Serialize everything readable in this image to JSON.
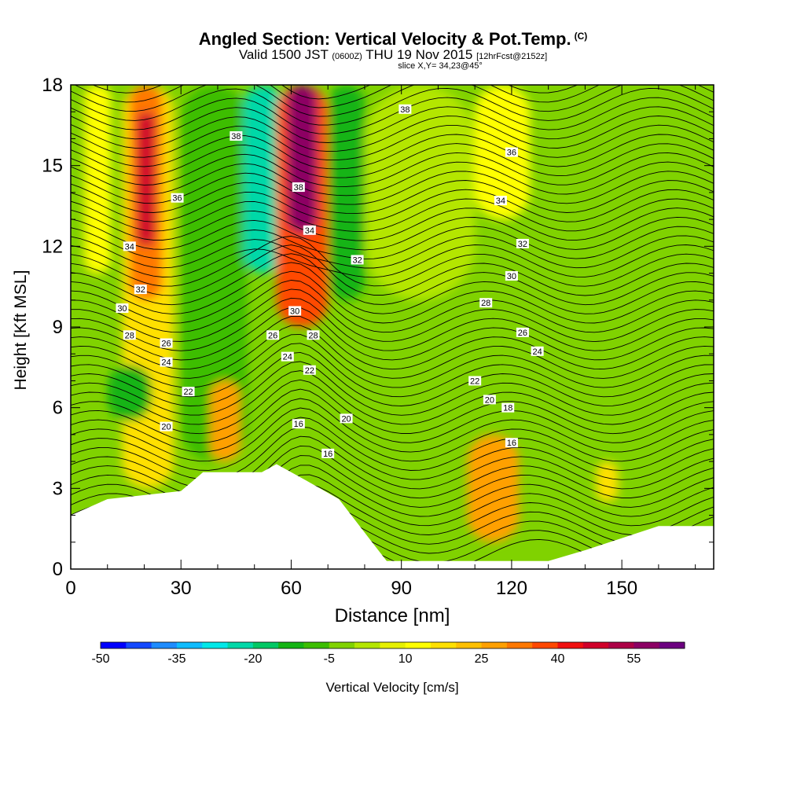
{
  "header": {
    "title": "Angled Section: Vertical Velocity & Pot.Temp.",
    "title_mark": "(C)",
    "valid_prefix": "Valid 1500 JST",
    "valid_utc": "(0600Z)",
    "valid_date": "THU 19 Nov 2015",
    "forecast": "[12hrFcst@2152z]",
    "slice": "slice X,Y= 34,23@45°"
  },
  "chart_data": {
    "type": "heatmap",
    "title": "Angled Section: Vertical Velocity & Pot.Temp.",
    "xlabel": "Distance [nm]",
    "ylabel": "Height [Kft MSL]",
    "xlim": [
      0,
      175
    ],
    "ylim": [
      0,
      18
    ],
    "x_ticks": [
      0,
      30,
      60,
      90,
      120,
      150
    ],
    "y_ticks": [
      0,
      3,
      6,
      9,
      12,
      15,
      18
    ],
    "colorbar": {
      "label": "Vertical Velocity [cm/s]",
      "range": [
        -50,
        65
      ],
      "step": 5,
      "tick_labels": [
        -50,
        -35,
        -20,
        -5,
        10,
        25,
        40,
        55
      ],
      "colors": [
        "#0000ff",
        "#1449ff",
        "#1e8cff",
        "#0fbcff",
        "#00e8e8",
        "#00d8a8",
        "#00c864",
        "#14b414",
        "#3cbe00",
        "#80d200",
        "#b4e600",
        "#e6f000",
        "#ffff00",
        "#ffe000",
        "#ffc000",
        "#ffa000",
        "#ff7800",
        "#ff4800",
        "#f01010",
        "#d0002a",
        "#ac0046",
        "#8c0064",
        "#6c0080"
      ]
    },
    "vertical_velocity_cells": [
      {
        "x": [
          0,
          7
        ],
        "y": [
          0,
          18
        ],
        "value": -5
      },
      {
        "x": [
          4,
          11
        ],
        "y": [
          11,
          18
        ],
        "value": 10
      },
      {
        "x": [
          14,
          28
        ],
        "y": [
          3,
          18
        ],
        "value": 15
      },
      {
        "x": [
          16,
          25
        ],
        "y": [
          10,
          18
        ],
        "value": 30
      },
      {
        "x": [
          18,
          23
        ],
        "y": [
          12,
          17
        ],
        "value": 45
      },
      {
        "x": [
          10,
          22
        ],
        "y": [
          5.5,
          7.6
        ],
        "value": -15
      },
      {
        "x": [
          30,
          48
        ],
        "y": [
          4,
          18
        ],
        "value": -10
      },
      {
        "x": [
          47,
          58
        ],
        "y": [
          11,
          18
        ],
        "value": -25
      },
      {
        "x": [
          38,
          46
        ],
        "y": [
          4,
          7
        ],
        "value": 25
      },
      {
        "x": [
          56,
          70
        ],
        "y": [
          9,
          18
        ],
        "value": 35
      },
      {
        "x": [
          59,
          67
        ],
        "y": [
          12.5,
          18
        ],
        "value": 55
      },
      {
        "x": [
          70,
          80
        ],
        "y": [
          10,
          18
        ],
        "value": -15
      },
      {
        "x": [
          80,
          110
        ],
        "y": [
          10,
          18
        ],
        "value": 0
      },
      {
        "x": [
          110,
          125
        ],
        "y": [
          13,
          18
        ],
        "value": 10
      },
      {
        "x": [
          108,
          122
        ],
        "y": [
          1,
          5
        ],
        "value": 25
      },
      {
        "x": [
          140,
          165
        ],
        "y": [
          11,
          18
        ],
        "value": -5
      },
      {
        "x": [
          143,
          149
        ],
        "y": [
          2.5,
          4
        ],
        "value": 15
      }
    ],
    "terrain_height_kft": [
      {
        "x": 0,
        "y": 2.0
      },
      {
        "x": 10,
        "y": 2.6
      },
      {
        "x": 30,
        "y": 2.9
      },
      {
        "x": 36,
        "y": 3.6
      },
      {
        "x": 52,
        "y": 3.6
      },
      {
        "x": 56,
        "y": 3.9
      },
      {
        "x": 64,
        "y": 3.3
      },
      {
        "x": 73,
        "y": 2.6
      },
      {
        "x": 82,
        "y": 1.0
      },
      {
        "x": 86,
        "y": 0.3
      },
      {
        "x": 130,
        "y": 0.3
      },
      {
        "x": 140,
        "y": 0.7
      },
      {
        "x": 160,
        "y": 1.6
      },
      {
        "x": 175,
        "y": 1.6
      }
    ],
    "potential_temperature_labels": [
      {
        "value": "38",
        "x": 45,
        "y": 16.1
      },
      {
        "value": "38",
        "x": 91,
        "y": 17.1
      },
      {
        "value": "36",
        "x": 29,
        "y": 13.8
      },
      {
        "value": "36",
        "x": 120,
        "y": 15.5
      },
      {
        "value": "38",
        "x": 62,
        "y": 14.2
      },
      {
        "value": "34",
        "x": 65,
        "y": 12.6
      },
      {
        "value": "34",
        "x": 16,
        "y": 12.0
      },
      {
        "value": "34",
        "x": 117,
        "y": 13.7
      },
      {
        "value": "32",
        "x": 78,
        "y": 11.5
      },
      {
        "value": "32",
        "x": 123,
        "y": 12.1
      },
      {
        "value": "32",
        "x": 19,
        "y": 10.4
      },
      {
        "value": "30",
        "x": 120,
        "y": 10.9
      },
      {
        "value": "30",
        "x": 14,
        "y": 9.7
      },
      {
        "value": "30",
        "x": 61,
        "y": 9.6
      },
      {
        "value": "28",
        "x": 113,
        "y": 9.9
      },
      {
        "value": "28",
        "x": 16,
        "y": 8.7
      },
      {
        "value": "28",
        "x": 66,
        "y": 8.7
      },
      {
        "value": "26",
        "x": 26,
        "y": 8.4
      },
      {
        "value": "26",
        "x": 55,
        "y": 8.7
      },
      {
        "value": "26",
        "x": 123,
        "y": 8.8
      },
      {
        "value": "24",
        "x": 26,
        "y": 7.7
      },
      {
        "value": "24",
        "x": 59,
        "y": 7.9
      },
      {
        "value": "24",
        "x": 127,
        "y": 8.1
      },
      {
        "value": "22",
        "x": 32,
        "y": 6.6
      },
      {
        "value": "22",
        "x": 65,
        "y": 7.4
      },
      {
        "value": "22",
        "x": 110,
        "y": 7.0
      },
      {
        "value": "20",
        "x": 26,
        "y": 5.3
      },
      {
        "value": "20",
        "x": 75,
        "y": 5.6
      },
      {
        "value": "20",
        "x": 114,
        "y": 6.3
      },
      {
        "value": "18",
        "x": 119,
        "y": 6.0
      },
      {
        "value": "16",
        "x": 62,
        "y": 5.4
      },
      {
        "value": "16",
        "x": 70,
        "y": 4.3
      },
      {
        "value": "16",
        "x": 120,
        "y": 4.7
      }
    ]
  }
}
